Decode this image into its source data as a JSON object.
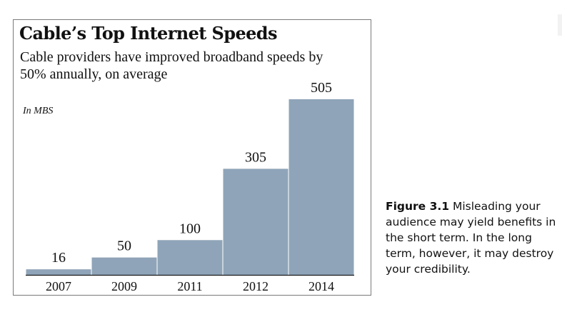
{
  "chart_data": {
    "type": "bar",
    "title": "Cable’s Top Internet Speeds",
    "subtitle": "Cable providers have improved broadband speeds by 50% annually, on average",
    "unit_label": "In MBS",
    "categories": [
      "2007",
      "2009",
      "2011",
      "2012",
      "2014"
    ],
    "values": [
      16,
      50,
      100,
      305,
      505
    ],
    "ylim": [
      0,
      505
    ],
    "grid": false,
    "bar_color": "#8fa4b8",
    "baseline_color": "#1a1a1a"
  },
  "caption": {
    "figure_label": "Figure 3.1",
    "text": " Misleading your audience may yield benefits in the short term. In the long term, however, it may destroy your credibility."
  }
}
